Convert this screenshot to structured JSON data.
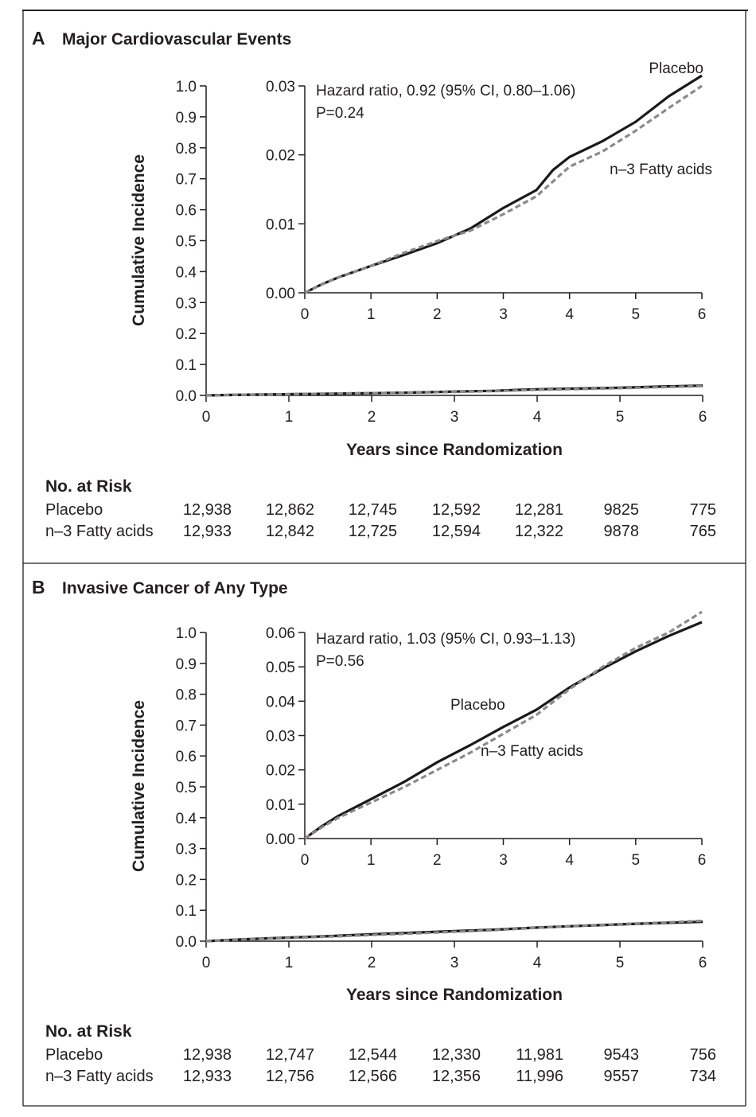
{
  "chart_data": [
    {
      "type": "line",
      "panel_letter": "A",
      "title": "Major Cardiovascular Events",
      "xlabel": "Years since Randomization",
      "ylabel": "Cumulative Incidence",
      "xlim": [
        0,
        6
      ],
      "ylim": [
        0,
        1.0
      ],
      "x_ticks": [
        "0",
        "1",
        "2",
        "3",
        "4",
        "5",
        "6"
      ],
      "y_ticks": [
        "0.0",
        "0.1",
        "0.2",
        "0.3",
        "0.4",
        "0.5",
        "0.6",
        "0.7",
        "0.8",
        "0.9",
        "1.0"
      ],
      "inset": {
        "xlim": [
          0,
          6
        ],
        "ylim": [
          0,
          0.03
        ],
        "x_ticks": [
          "0",
          "1",
          "2",
          "3",
          "4",
          "5",
          "6"
        ],
        "y_ticks": [
          "0.00",
          "0.01",
          "0.02",
          "0.03"
        ],
        "hazard_text": "Hazard ratio, 0.92 (95% CI, 0.80–1.06)",
        "p_text": "P=0.24"
      },
      "series": [
        {
          "name": "Placebo",
          "color": "#1a1a1a",
          "dashed": false,
          "x": [
            0,
            0.25,
            0.5,
            1,
            1.5,
            2,
            2.5,
            3,
            3.5,
            3.75,
            4,
            4.5,
            5,
            5.5,
            6
          ],
          "y": [
            0,
            0.0012,
            0.0022,
            0.0039,
            0.0055,
            0.0072,
            0.0093,
            0.0123,
            0.0149,
            0.0178,
            0.0197,
            0.022,
            0.0248,
            0.0285,
            0.0315
          ]
        },
        {
          "name": "n−3 Fatty acids",
          "color": "#8a8a8a",
          "dashed": true,
          "x": [
            0,
            0.25,
            0.5,
            1,
            1.5,
            2,
            2.5,
            3,
            3.5,
            4,
            4.5,
            5,
            5.5,
            6
          ],
          "y": [
            0,
            0.0012,
            0.0022,
            0.0039,
            0.0058,
            0.0075,
            0.009,
            0.0114,
            0.014,
            0.0183,
            0.0205,
            0.0235,
            0.0268,
            0.03
          ]
        }
      ],
      "risk_table": {
        "header": "No. at Risk",
        "rows": [
          {
            "label": "Placebo",
            "values": [
              "12,938",
              "12,862",
              "12,745",
              "12,592",
              "12,281",
              "9825",
              "775"
            ]
          },
          {
            "label": "n–3 Fatty acids",
            "values": [
              "12,933",
              "12,842",
              "12,725",
              "12,594",
              "12,322",
              "9878",
              "765"
            ]
          }
        ]
      }
    },
    {
      "type": "line",
      "panel_letter": "B",
      "title": "Invasive Cancer of Any Type",
      "xlabel": "Years since Randomization",
      "ylabel": "Cumulative Incidence",
      "xlim": [
        0,
        6
      ],
      "ylim": [
        0,
        1.0
      ],
      "x_ticks": [
        "0",
        "1",
        "2",
        "3",
        "4",
        "5",
        "6"
      ],
      "y_ticks": [
        "0.0",
        "0.1",
        "0.2",
        "0.3",
        "0.4",
        "0.5",
        "0.6",
        "0.7",
        "0.8",
        "0.9",
        "1.0"
      ],
      "inset": {
        "xlim": [
          0,
          6
        ],
        "ylim": [
          0,
          0.06
        ],
        "x_ticks": [
          "0",
          "1",
          "2",
          "3",
          "4",
          "5",
          "6"
        ],
        "y_ticks": [
          "0.00",
          "0.01",
          "0.02",
          "0.03",
          "0.04",
          "0.05",
          "0.06"
        ],
        "hazard_text": "Hazard ratio, 1.03 (95% CI, 0.93–1.13)",
        "p_text": "P=0.56"
      },
      "series": [
        {
          "name": "Placebo",
          "color": "#1a1a1a",
          "dashed": false,
          "x": [
            0,
            0.25,
            0.5,
            1,
            1.5,
            2,
            2.5,
            3,
            3.5,
            4,
            4.5,
            5,
            5.5,
            6
          ],
          "y": [
            0,
            0.0035,
            0.0065,
            0.0115,
            0.0165,
            0.0222,
            0.0272,
            0.0325,
            0.0375,
            0.044,
            0.0495,
            0.0545,
            0.059,
            0.063
          ]
        },
        {
          "name": "n−3 Fatty acids",
          "color": "#8a8a8a",
          "dashed": true,
          "x": [
            0,
            0.25,
            0.5,
            1,
            1.5,
            2,
            2.5,
            3,
            3.5,
            4,
            4.5,
            5,
            5.5,
            6
          ],
          "y": [
            0,
            0.0032,
            0.006,
            0.0105,
            0.015,
            0.02,
            0.025,
            0.0305,
            0.036,
            0.0435,
            0.05,
            0.0555,
            0.06,
            0.066
          ]
        }
      ],
      "risk_table": {
        "header": "No. at Risk",
        "rows": [
          {
            "label": "Placebo",
            "values": [
              "12,938",
              "12,747",
              "12,544",
              "12,330",
              "11,981",
              "9543",
              "756"
            ]
          },
          {
            "label": "n–3 Fatty acids",
            "values": [
              "12,933",
              "12,756",
              "12,566",
              "12,356",
              "11,996",
              "9557",
              "734"
            ]
          }
        ]
      }
    }
  ],
  "series_labels": {
    "a_placebo": "Placebo",
    "a_fatty": "n–3 Fatty acids",
    "b_placebo": "Placebo",
    "b_fatty": "n–3 Fatty acids"
  }
}
